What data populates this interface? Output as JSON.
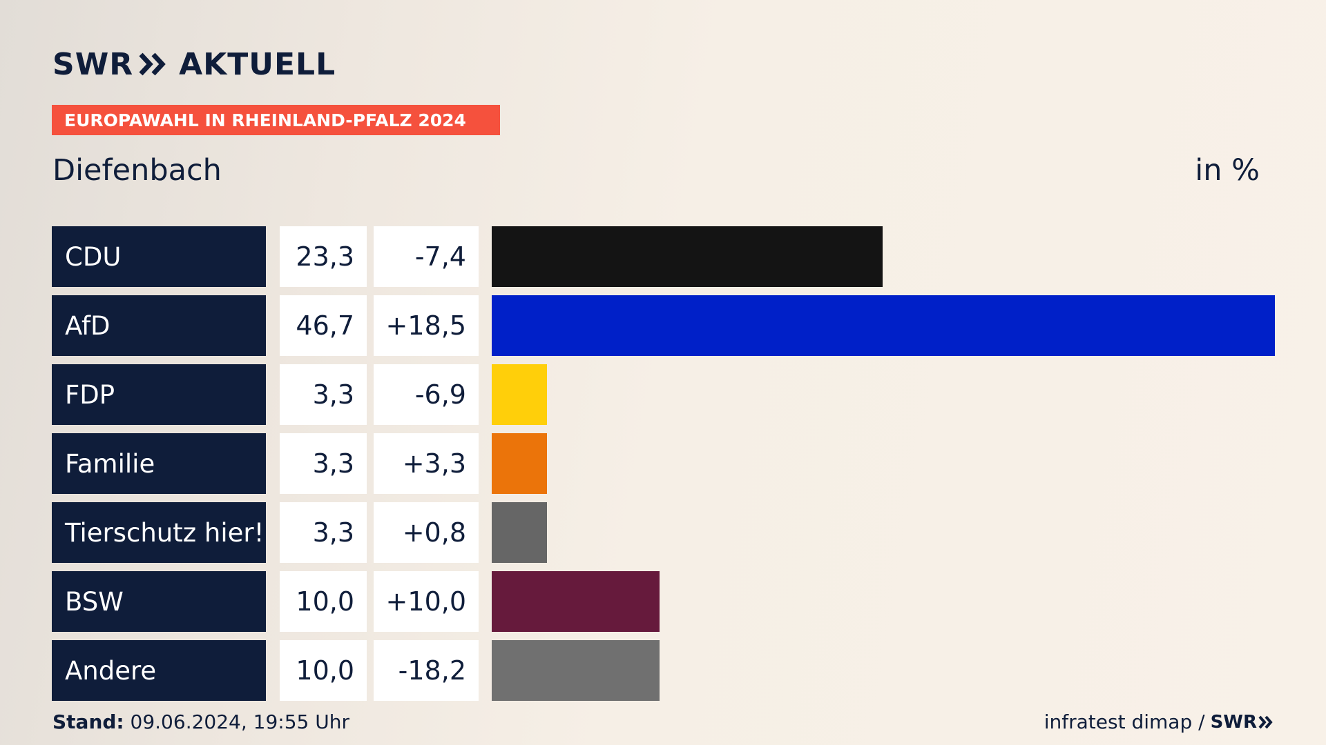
{
  "brand": {
    "name": "SWR",
    "suffix": "AKTUELL"
  },
  "tag": "EUROPAWAHL IN RHEINLAND-PFALZ 2024",
  "subtitle": "Diefenbach",
  "unit": "in %",
  "chart_data": {
    "type": "bar",
    "orientation": "horizontal",
    "title": "EUROPAWAHL IN RHEINLAND-PFALZ 2024",
    "subtitle": "Diefenbach",
    "unit": "in %",
    "categories": [
      "CDU",
      "AfD",
      "FDP",
      "Familie",
      "Tierschutz hier!",
      "BSW",
      "Andere"
    ],
    "values": [
      23.3,
      46.7,
      3.3,
      3.3,
      3.3,
      10.0,
      10.0
    ],
    "value_labels": [
      "23,3",
      "46,7",
      "3,3",
      "3,3",
      "3,3",
      "10,0",
      "10,0"
    ],
    "changes": [
      -7.4,
      18.5,
      -6.9,
      3.3,
      0.8,
      10.0,
      -18.2
    ],
    "change_labels": [
      "-7,4",
      "+18,5",
      "-6,9",
      "+3,3",
      "+0,8",
      "+10,0",
      "-18,2"
    ],
    "colors": [
      "#141414",
      "#0020c8",
      "#ffcf0a",
      "#eb740a",
      "#666666",
      "#661a3c",
      "#707070"
    ],
    "xlim": [
      0,
      46.7
    ]
  },
  "footer": {
    "stand_label": "Stand:",
    "stand_value": "09.06.2024, 19:55 Uhr",
    "source": "infratest dimap /",
    "source_brand": "SWR"
  }
}
